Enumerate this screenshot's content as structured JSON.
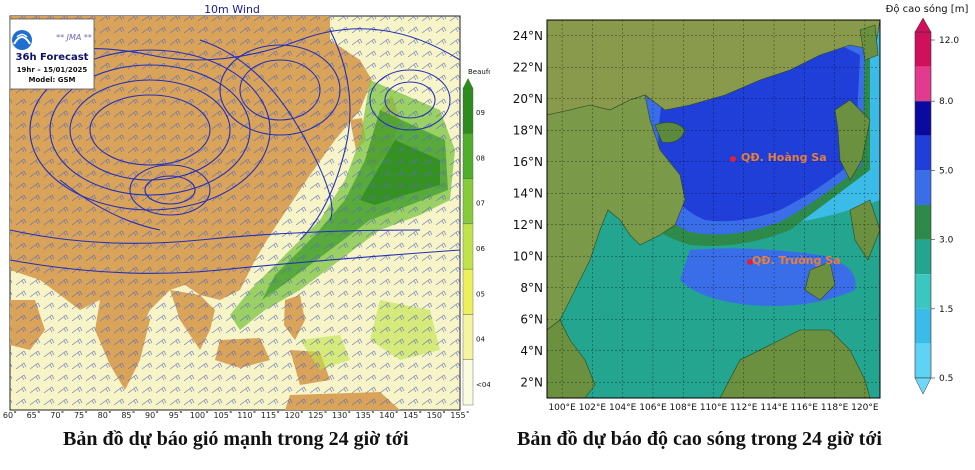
{
  "wind_map": {
    "title": "10m Wind",
    "logo": {
      "brand": "JMA",
      "brand_decorated": "** JMA **",
      "forecast": "36h Forecast",
      "time": "19hr – 15/01/2025",
      "model": "Model: GSM"
    },
    "scale_title": "Beaufort",
    "scale_labels": [
      "09",
      "08",
      "07",
      "06",
      "05",
      "04",
      "<04"
    ],
    "scale_colors": [
      "#2e8b1e",
      "#4fae2a",
      "#86cc3a",
      "#c0e24a",
      "#eef05a",
      "#f6f4a0",
      "#fbfbe0"
    ],
    "lon_labels": [
      "60˚",
      "65˚",
      "70˚",
      "75˚",
      "80˚",
      "85˚",
      "90˚",
      "95˚",
      "100˚",
      "105˚",
      "110˚",
      "115˚",
      "120˚",
      "125˚",
      "130˚",
      "135˚",
      "140˚",
      "145˚",
      "150˚",
      "155˚"
    ],
    "caption": "Bản đồ dự báo gió mạnh trong 24 giờ tới"
  },
  "wave_map": {
    "colorbar_title": "Độ cao sóng [m]",
    "colorbar_ticks": [
      "12.0",
      "8.0",
      "5.0",
      "3.0",
      "1.5",
      "0.5"
    ],
    "colorbar_colors": [
      "#d0105a",
      "#e23a8c",
      "#0a0aa0",
      "#1f3fd8",
      "#3a6ee8",
      "#2d8a4a",
      "#23a58f",
      "#3ac7c0",
      "#3bbbe8",
      "#5fd3f5"
    ],
    "lat_labels": [
      "24°N",
      "22°N",
      "20°N",
      "18°N",
      "16°N",
      "14°N",
      "12°N",
      "10°N",
      "8°N",
      "6°N",
      "4°N",
      "2°N"
    ],
    "lon_labels": [
      "100°E",
      "102°E",
      "104°E",
      "106°E",
      "108°E",
      "110°E",
      "112°E",
      "114°E",
      "116°E",
      "118°E",
      "120°E"
    ],
    "labels": {
      "hoang_sa": "QĐ. Hoàng Sa",
      "truong_sa": "QĐ. Trường Sa"
    },
    "caption": "Bản đồ dự báo độ cao sóng trong 24 giờ tới"
  }
}
